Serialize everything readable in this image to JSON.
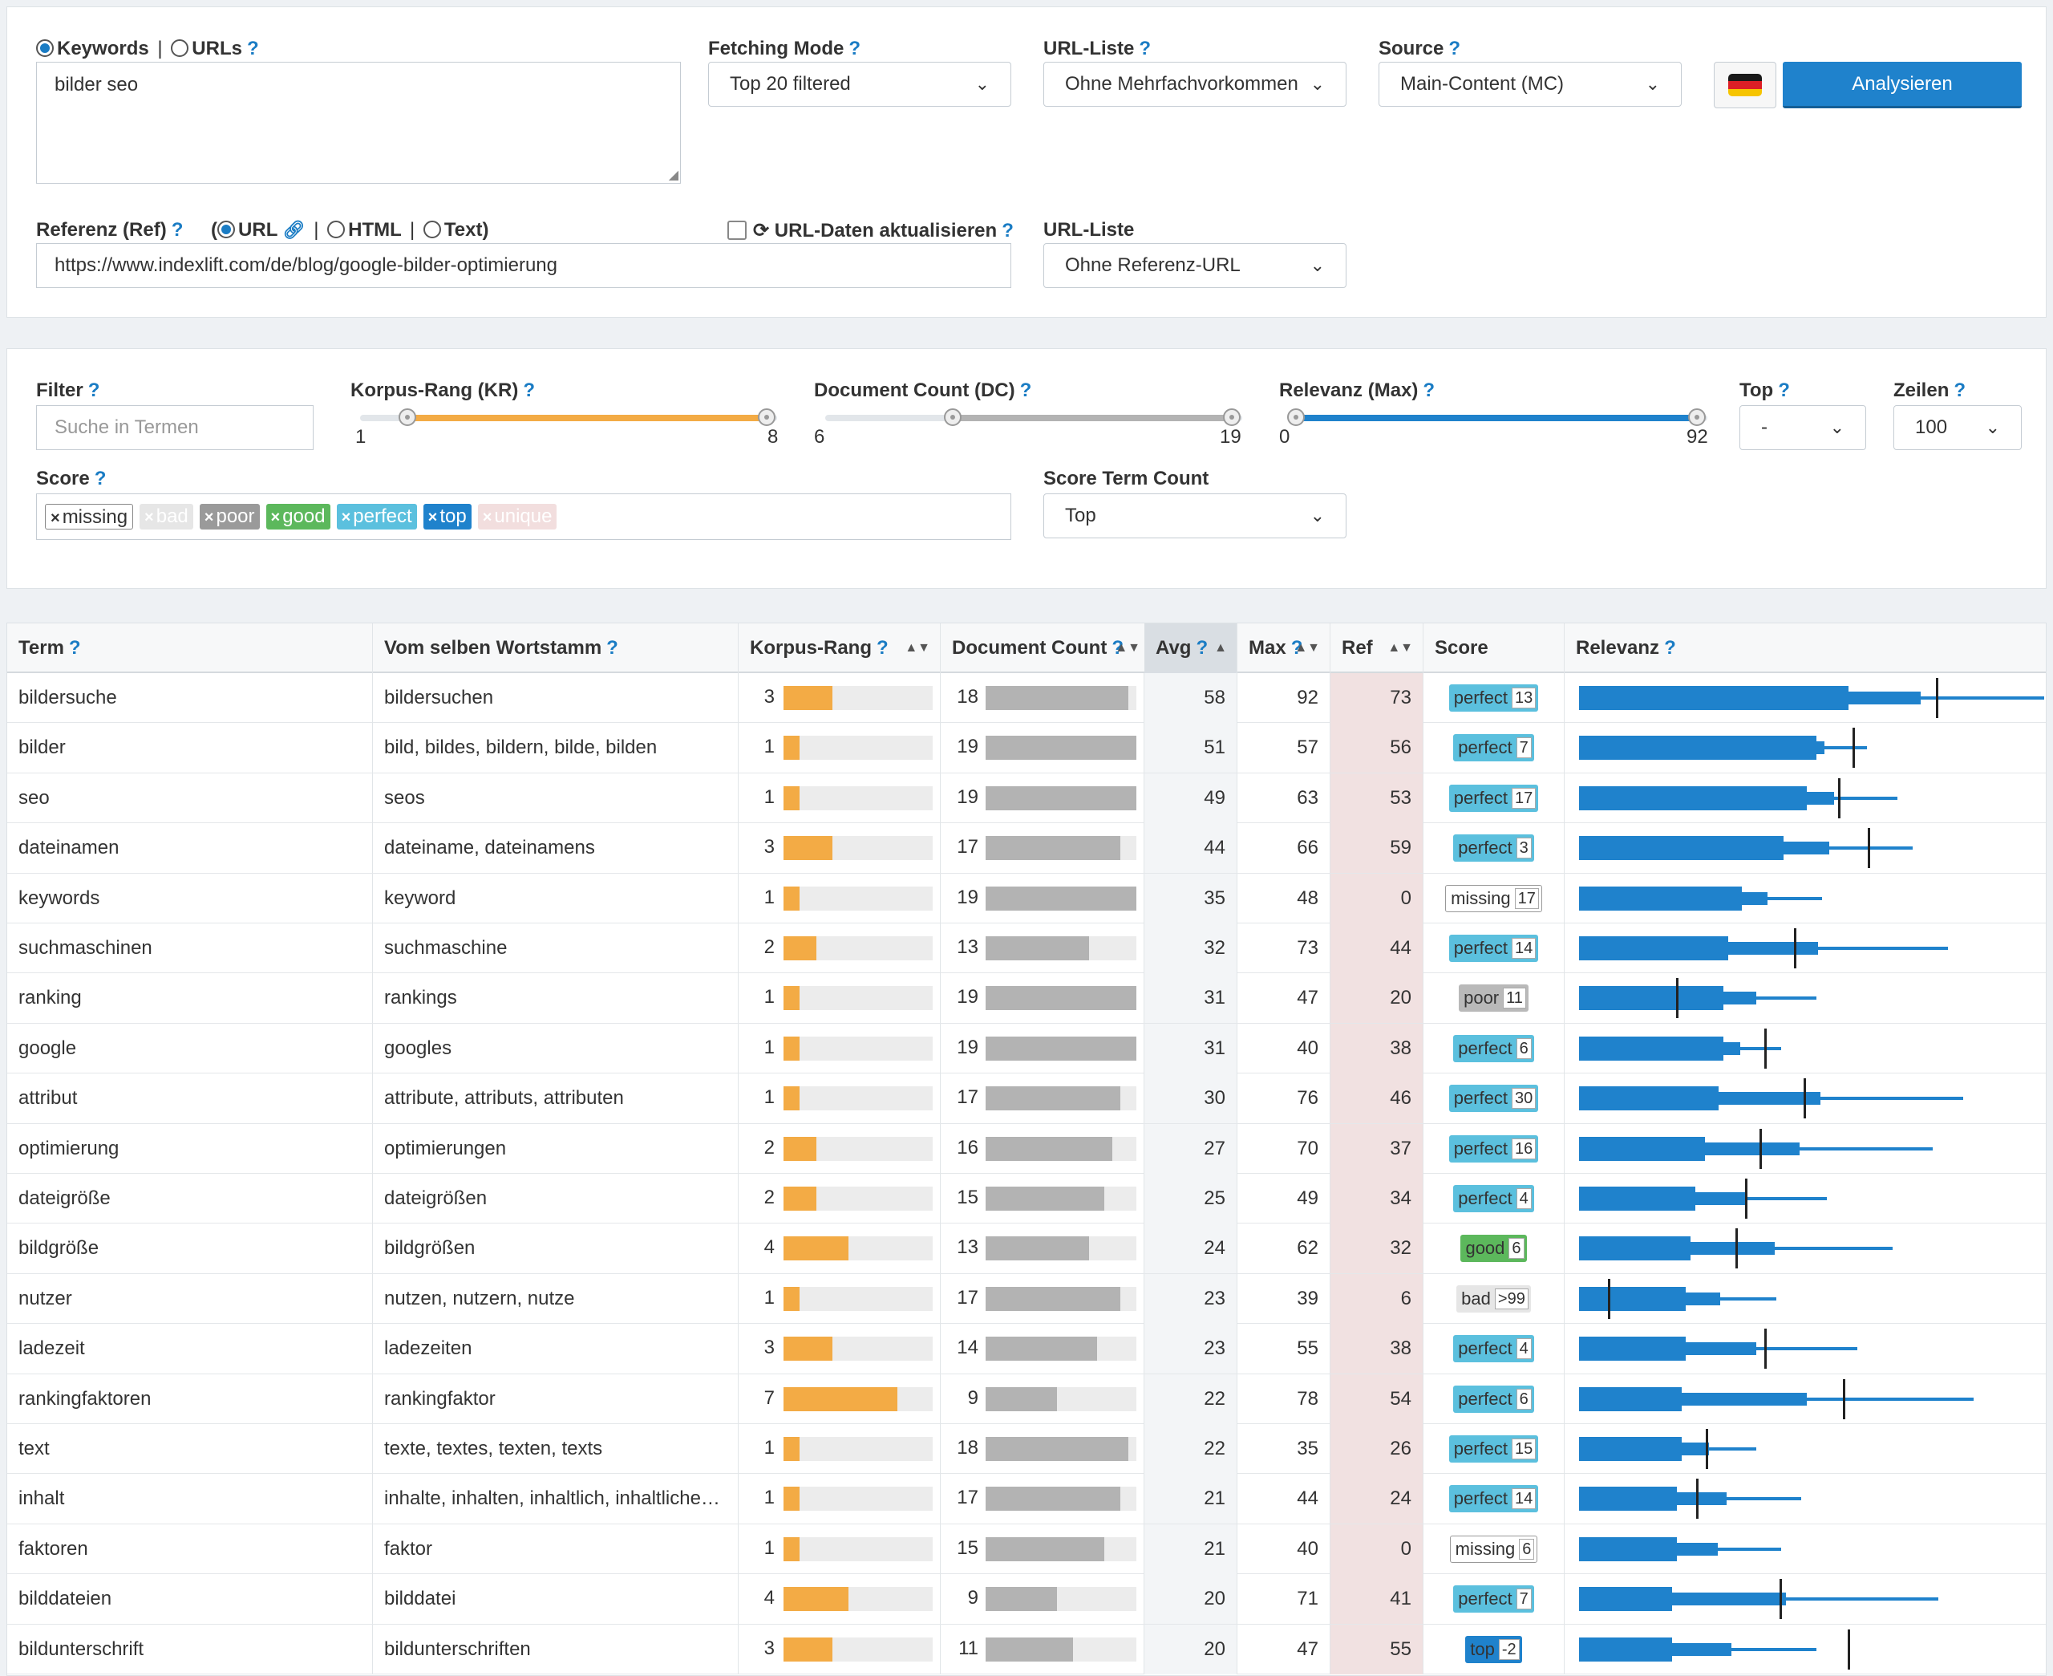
{
  "query": {
    "mode_keywords": "Keywords",
    "mode_urls": "URLs",
    "keywords_value": "bilder seo",
    "fetching_mode_label": "Fetching Mode",
    "fetching_mode_value": "Top 20 filtered",
    "url_liste_label": "URL-Liste",
    "url_liste_value": "Ohne Mehrfachvorkommen",
    "source_label": "Source",
    "source_value": "Main-Content (MC)",
    "analyze_button": "Analysieren",
    "flag_colors": [
      "#1a1a1a",
      "#dd1f26",
      "#f6c400"
    ],
    "ref_label": "Referenz (Ref)",
    "ref_open": "(",
    "ref_url": "URL",
    "ref_html": "HTML",
    "ref_text": "Text)",
    "refresh_label": "URL-Daten aktualisieren",
    "ref_url_value": "https://www.indexlift.com/de/blog/google-bilder-optimierung",
    "url_liste2_label": "URL-Liste",
    "url_liste2_value": "Ohne Referenz-URL"
  },
  "filters": {
    "filter_label": "Filter",
    "filter_placeholder": "Suche in Termen",
    "kr_label": "Korpus-Rang (KR)",
    "kr_min": "1",
    "kr_max": "8",
    "dc_label": "Document Count (DC)",
    "dc_min": "6",
    "dc_max": "19",
    "rel_label": "Relevanz (Max)",
    "rel_min": "0",
    "rel_max": "92",
    "top_label": "Top",
    "top_value": "-",
    "rows_label": "Zeilen",
    "rows_value": "100",
    "score_label": "Score",
    "score_tags": [
      "missing",
      "bad",
      "poor",
      "good",
      "perfect",
      "top",
      "unique"
    ],
    "score_term_count_label": "Score Term Count",
    "score_term_count_value": "Top"
  },
  "columns": {
    "term": "Term",
    "stem": "Vom selben Wortstamm",
    "kr": "Korpus-Rang",
    "dc": "Document Count",
    "avg": "Avg",
    "max": "Max",
    "ref": "Ref",
    "score": "Score",
    "relevanz": "Relevanz"
  },
  "rows": [
    {
      "term": "bildersuche",
      "stem": "bildersuchen",
      "kr": 3,
      "dc": 18,
      "avg": 58,
      "max": 92,
      "ref": 73,
      "score": "perfect",
      "count": "13"
    },
    {
      "term": "bilder",
      "stem": "bild, bildes, bildern, bilde, bilden",
      "kr": 1,
      "dc": 19,
      "avg": 51,
      "max": 57,
      "ref": 56,
      "score": "perfect",
      "count": "7"
    },
    {
      "term": "seo",
      "stem": "seos",
      "kr": 1,
      "dc": 19,
      "avg": 49,
      "max": 63,
      "ref": 53,
      "score": "perfect",
      "count": "17"
    },
    {
      "term": "dateinamen",
      "stem": "dateiname, dateinamens",
      "kr": 3,
      "dc": 17,
      "avg": 44,
      "max": 66,
      "ref": 59,
      "score": "perfect",
      "count": "3"
    },
    {
      "term": "keywords",
      "stem": "keyword",
      "kr": 1,
      "dc": 19,
      "avg": 35,
      "max": 48,
      "ref": 0,
      "score": "missing",
      "count": "17"
    },
    {
      "term": "suchmaschinen",
      "stem": "suchmaschine",
      "kr": 2,
      "dc": 13,
      "avg": 32,
      "max": 73,
      "ref": 44,
      "score": "perfect",
      "count": "14"
    },
    {
      "term": "ranking",
      "stem": "rankings",
      "kr": 1,
      "dc": 19,
      "avg": 31,
      "max": 47,
      "ref": 20,
      "score": "poor",
      "count": "11"
    },
    {
      "term": "google",
      "stem": "googles",
      "kr": 1,
      "dc": 19,
      "avg": 31,
      "max": 40,
      "ref": 38,
      "score": "perfect",
      "count": "6"
    },
    {
      "term": "attribut",
      "stem": "attribute, attributs, attributen",
      "kr": 1,
      "dc": 17,
      "avg": 30,
      "max": 76,
      "ref": 46,
      "score": "perfect",
      "count": "30"
    },
    {
      "term": "optimierung",
      "stem": "optimierungen",
      "kr": 2,
      "dc": 16,
      "avg": 27,
      "max": 70,
      "ref": 37,
      "score": "perfect",
      "count": "16"
    },
    {
      "term": "dateigröße",
      "stem": "dateigrößen",
      "kr": 2,
      "dc": 15,
      "avg": 25,
      "max": 49,
      "ref": 34,
      "score": "perfect",
      "count": "4"
    },
    {
      "term": "bildgröße",
      "stem": "bildgrößen",
      "kr": 4,
      "dc": 13,
      "avg": 24,
      "max": 62,
      "ref": 32,
      "score": "good",
      "count": "6"
    },
    {
      "term": "nutzer",
      "stem": "nutzen, nutzern, nutze",
      "kr": 1,
      "dc": 17,
      "avg": 23,
      "max": 39,
      "ref": 6,
      "score": "bad",
      "count": ">99"
    },
    {
      "term": "ladezeit",
      "stem": "ladezeiten",
      "kr": 3,
      "dc": 14,
      "avg": 23,
      "max": 55,
      "ref": 38,
      "score": "perfect",
      "count": "4"
    },
    {
      "term": "rankingfaktoren",
      "stem": "rankingfaktor",
      "kr": 7,
      "dc": 9,
      "avg": 22,
      "max": 78,
      "ref": 54,
      "score": "perfect",
      "count": "6"
    },
    {
      "term": "text",
      "stem": "texte, textes, texten, texts",
      "kr": 1,
      "dc": 18,
      "avg": 22,
      "max": 35,
      "ref": 26,
      "score": "perfect",
      "count": "15"
    },
    {
      "term": "inhalt",
      "stem": "inhalte, inhalten, inhaltlich, inhaltliche…",
      "kr": 1,
      "dc": 17,
      "avg": 21,
      "max": 44,
      "ref": 24,
      "score": "perfect",
      "count": "14"
    },
    {
      "term": "faktoren",
      "stem": "faktor",
      "kr": 1,
      "dc": 15,
      "avg": 21,
      "max": 40,
      "ref": 0,
      "score": "missing",
      "count": "6"
    },
    {
      "term": "bilddateien",
      "stem": "bilddatei",
      "kr": 4,
      "dc": 9,
      "avg": 20,
      "max": 71,
      "ref": 41,
      "score": "perfect",
      "count": "7"
    },
    {
      "term": "bildunterschrift",
      "stem": "bildunterschriften",
      "kr": 3,
      "dc": 11,
      "avg": 20,
      "max": 47,
      "ref": 55,
      "score": "top",
      "count": "-2"
    }
  ],
  "colors": {
    "accent": "#1f82cc",
    "kr_bar": "#f3ab45",
    "dc_bar": "#b3b3b3",
    "ref_col": "#f1e1e1",
    "missing": "#ffffff",
    "bad": "#e6e6e6",
    "poor": "#b9b9b9",
    "good": "#5cb85c",
    "perfect": "#5bc0de",
    "top": "#1f82cc",
    "unique": "#f2dede"
  }
}
